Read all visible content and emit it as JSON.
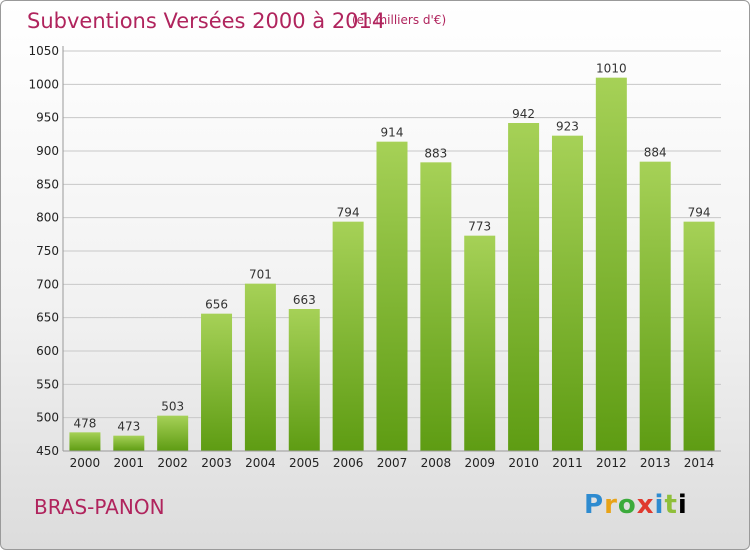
{
  "header": {
    "title": "Subventions Versées 2000 à 2014",
    "unit": "(en milliers d'€)"
  },
  "footer": {
    "town": "BRAS-PANON",
    "logo_letters": [
      "P",
      "r",
      "o",
      "x",
      "i",
      "t",
      "i"
    ]
  },
  "colors": {
    "title": "#b0245d",
    "bar_top": "#a6d157",
    "bar_bottom": "#5e9c13"
  },
  "chart_data": {
    "type": "bar",
    "categories": [
      "2000",
      "2001",
      "2002",
      "2003",
      "2004",
      "2005",
      "2006",
      "2007",
      "2008",
      "2009",
      "2010",
      "2011",
      "2012",
      "2013",
      "2014"
    ],
    "values": [
      478,
      473,
      503,
      656,
      701,
      663,
      794,
      914,
      883,
      773,
      942,
      923,
      1010,
      884,
      794
    ],
    "yticks": [
      450,
      500,
      550,
      600,
      650,
      700,
      750,
      800,
      850,
      900,
      950,
      1000,
      1050
    ],
    "ylim": [
      450,
      1050
    ],
    "grid": true
  }
}
